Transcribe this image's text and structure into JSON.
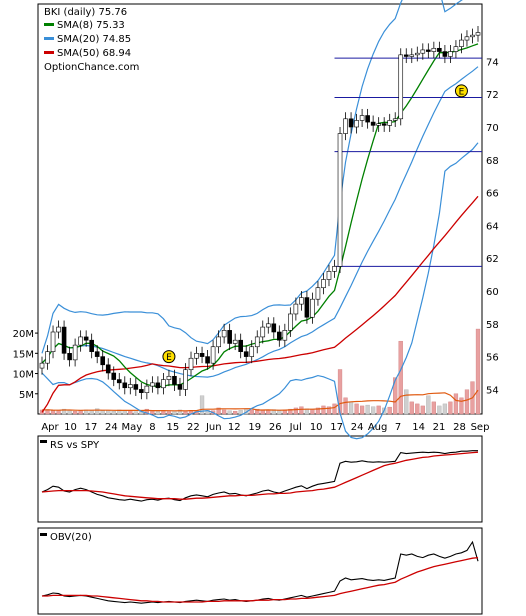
{
  "chart_data": [
    {
      "type": "candlestick",
      "panel": "price",
      "title": "BKI (daily) 75.76",
      "watermark": "OptionChance.com",
      "legend": [
        {
          "label": "SMA(8) 75.33",
          "color": "#008000"
        },
        {
          "label": "SMA(20) 74.85",
          "color": "#3a8fd8"
        },
        {
          "label": "SMA(50) 68.94",
          "color": "#cc0000"
        }
      ],
      "x_labels": [
        "Apr",
        "10",
        "17",
        "24",
        "May",
        "8",
        "15",
        "22",
        "Jun",
        "12",
        "19",
        "26",
        "Jul",
        "10",
        "17",
        "24",
        "Aug",
        "7",
        "14",
        "21",
        "28",
        "Sep"
      ],
      "y_ticks": [
        54,
        56,
        58,
        60,
        62,
        64,
        66,
        68,
        70,
        72,
        74
      ],
      "ylim": [
        52.5,
        77.5
      ],
      "volume_ticks": [
        "5M",
        "10M",
        "15M",
        "20M"
      ],
      "volume_tick_values": [
        5,
        10,
        15,
        20
      ],
      "volume_ylim": [
        0,
        22
      ],
      "horizontal_levels": [
        61.5,
        68.5,
        71.8,
        74.2
      ],
      "earnings_markers": [
        {
          "index": 23,
          "label": "E",
          "y": 56.0
        },
        {
          "index": 76,
          "label": "E",
          "y": 72.2
        }
      ],
      "closes": [
        55.6,
        56.3,
        57.5,
        57.8,
        56.2,
        55.8,
        56.7,
        57.2,
        57.0,
        56.3,
        56.0,
        55.5,
        55.0,
        54.6,
        54.4,
        54.1,
        54.3,
        54.0,
        53.8,
        54.2,
        54.4,
        54.1,
        54.6,
        54.8,
        54.3,
        54.0,
        55.2,
        55.9,
        56.2,
        56.0,
        55.6,
        56.6,
        57.2,
        57.6,
        56.8,
        57.0,
        56.3,
        56.0,
        56.6,
        57.2,
        57.8,
        58.0,
        57.5,
        57.0,
        57.6,
        58.6,
        59.2,
        59.6,
        58.4,
        59.5,
        60.2,
        60.7,
        61.2,
        61.5,
        69.6,
        70.5,
        70.0,
        70.4,
        70.7,
        70.3,
        70.1,
        70.2,
        70.1,
        70.4,
        70.5,
        74.4,
        74.3,
        74.4,
        74.5,
        74.7,
        74.6,
        74.8,
        74.6,
        74.3,
        74.6,
        74.9,
        75.3,
        75.5,
        75.6,
        75.76
      ],
      "volumes_millions": [
        1.0,
        1.1,
        0.8,
        0.9,
        1.2,
        0.9,
        0.7,
        0.8,
        1.0,
        0.9,
        1.3,
        0.8,
        0.9,
        0.7,
        1.0,
        0.8,
        0.9,
        0.6,
        0.7,
        1.2,
        0.8,
        0.7,
        0.9,
        0.6,
        0.8,
        1.0,
        0.7,
        0.9,
        0.8,
        4.5,
        0.9,
        0.8,
        1.5,
        1.0,
        0.8,
        0.7,
        0.9,
        1.1,
        1.0,
        1.2,
        0.9,
        1.0,
        1.1,
        0.8,
        1.0,
        1.2,
        1.5,
        1.8,
        1.3,
        1.2,
        1.5,
        2.0,
        1.8,
        2.5,
        11.0,
        4.0,
        3.0,
        2.5,
        2.0,
        2.2,
        1.8,
        2.0,
        1.5,
        1.7,
        9.0,
        18.0,
        6.0,
        3.0,
        2.5,
        2.0,
        4.5,
        3.0,
        2.0,
        2.5,
        3.0,
        5.0,
        4.0,
        6.0,
        8.0,
        21.0
      ]
    },
    {
      "type": "line",
      "panel": "indicator",
      "label": "RS vs SPY",
      "series_colors": [
        "#000000",
        "#cc0000"
      ],
      "series": [
        {
          "values": [
            0.5,
            0.55,
            0.62,
            0.6,
            0.52,
            0.5,
            0.55,
            0.58,
            0.55,
            0.5,
            0.45,
            0.42,
            0.38,
            0.36,
            0.34,
            0.33,
            0.35,
            0.33,
            0.31,
            0.34,
            0.35,
            0.33,
            0.36,
            0.37,
            0.34,
            0.32,
            0.38,
            0.42,
            0.44,
            0.42,
            0.4,
            0.45,
            0.48,
            0.5,
            0.46,
            0.47,
            0.44,
            0.42,
            0.45,
            0.48,
            0.52,
            0.54,
            0.5,
            0.48,
            0.52,
            0.56,
            0.6,
            0.63,
            0.57,
            0.62,
            0.66,
            0.68,
            0.7,
            0.72,
            1.1,
            1.14,
            1.12,
            1.13,
            1.15,
            1.13,
            1.12,
            1.13,
            1.12,
            1.13,
            1.14,
            1.32,
            1.3,
            1.31,
            1.32,
            1.33,
            1.32,
            1.33,
            1.32,
            1.3,
            1.32,
            1.33,
            1.35,
            1.35,
            1.36,
            1.36
          ]
        },
        {
          "values": [
            0.5,
            0.51,
            0.52,
            0.53,
            0.53,
            0.53,
            0.53,
            0.53,
            0.53,
            0.52,
            0.51,
            0.5,
            0.48,
            0.46,
            0.44,
            0.42,
            0.41,
            0.4,
            0.39,
            0.38,
            0.37,
            0.36,
            0.36,
            0.36,
            0.36,
            0.35,
            0.35,
            0.36,
            0.37,
            0.37,
            0.38,
            0.39,
            0.4,
            0.41,
            0.42,
            0.42,
            0.43,
            0.43,
            0.43,
            0.44,
            0.45,
            0.46,
            0.46,
            0.47,
            0.47,
            0.48,
            0.5,
            0.51,
            0.52,
            0.53,
            0.55,
            0.56,
            0.58,
            0.6,
            0.65,
            0.7,
            0.75,
            0.8,
            0.85,
            0.9,
            0.95,
            1.0,
            1.05,
            1.08,
            1.1,
            1.13,
            1.16,
            1.18,
            1.2,
            1.22,
            1.23,
            1.25,
            1.26,
            1.27,
            1.28,
            1.29,
            1.3,
            1.31,
            1.32,
            1.33
          ]
        }
      ],
      "ylim": [
        0,
        1.5
      ]
    },
    {
      "type": "line",
      "panel": "indicator",
      "label": "OBV(20)",
      "series_colors": [
        "#000000",
        "#cc0000"
      ],
      "series": [
        {
          "values": [
            0.2,
            0.22,
            0.25,
            0.24,
            0.2,
            0.19,
            0.2,
            0.21,
            0.2,
            0.18,
            0.16,
            0.14,
            0.12,
            0.11,
            0.1,
            0.09,
            0.1,
            0.09,
            0.08,
            0.09,
            0.1,
            0.09,
            0.1,
            0.11,
            0.1,
            0.09,
            0.11,
            0.12,
            0.13,
            0.12,
            0.11,
            0.13,
            0.14,
            0.15,
            0.13,
            0.14,
            0.12,
            0.11,
            0.12,
            0.13,
            0.15,
            0.16,
            0.14,
            0.13,
            0.15,
            0.17,
            0.19,
            0.21,
            0.18,
            0.2,
            0.22,
            0.24,
            0.26,
            0.28,
            0.45,
            0.5,
            0.47,
            0.48,
            0.49,
            0.47,
            0.46,
            0.47,
            0.46,
            0.48,
            0.5,
            0.9,
            0.88,
            0.9,
            0.86,
            0.84,
            0.88,
            0.9,
            0.86,
            0.83,
            0.86,
            0.9,
            0.92,
            0.96,
            1.1,
            0.78
          ]
        },
        {
          "values": [
            0.2,
            0.2,
            0.21,
            0.21,
            0.21,
            0.21,
            0.21,
            0.21,
            0.21,
            0.2,
            0.2,
            0.19,
            0.18,
            0.17,
            0.16,
            0.15,
            0.14,
            0.13,
            0.12,
            0.12,
            0.11,
            0.11,
            0.1,
            0.1,
            0.1,
            0.1,
            0.1,
            0.1,
            0.1,
            0.1,
            0.11,
            0.11,
            0.11,
            0.12,
            0.12,
            0.12,
            0.12,
            0.12,
            0.12,
            0.13,
            0.13,
            0.13,
            0.14,
            0.14,
            0.14,
            0.15,
            0.15,
            0.16,
            0.16,
            0.17,
            0.18,
            0.19,
            0.2,
            0.21,
            0.24,
            0.26,
            0.28,
            0.3,
            0.32,
            0.34,
            0.36,
            0.38,
            0.39,
            0.41,
            0.43,
            0.48,
            0.52,
            0.56,
            0.6,
            0.63,
            0.66,
            0.69,
            0.71,
            0.73,
            0.75,
            0.77,
            0.79,
            0.81,
            0.83,
            0.84
          ]
        }
      ],
      "ylim": [
        0,
        1.2
      ]
    }
  ]
}
